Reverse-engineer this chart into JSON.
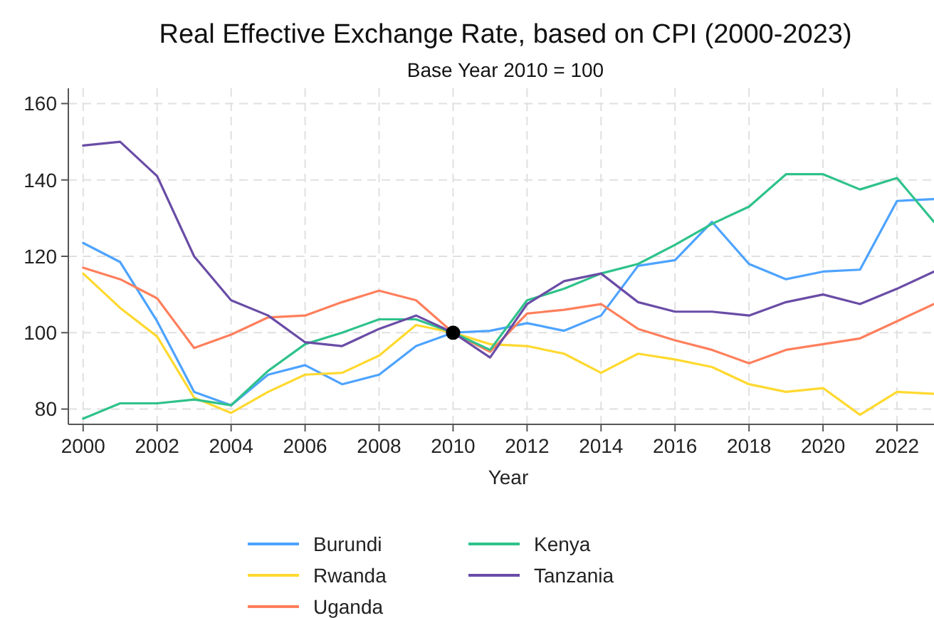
{
  "chart_data": {
    "type": "line",
    "title": "Real Effective Exchange Rate, based on CPI (2000-2023)",
    "subtitle": "Base Year 2010 = 100",
    "xlabel": "Year",
    "x": [
      2000,
      2001,
      2002,
      2003,
      2004,
      2005,
      2006,
      2007,
      2008,
      2009,
      2010,
      2011,
      2012,
      2013,
      2014,
      2015,
      2016,
      2017,
      2018,
      2019,
      2020,
      2021,
      2022,
      2023
    ],
    "xlim": [
      1999.6,
      2023
    ],
    "xticks": [
      2000,
      2002,
      2004,
      2006,
      2008,
      2010,
      2012,
      2014,
      2016,
      2018,
      2020,
      2022
    ],
    "ylim": [
      76,
      164
    ],
    "yticks": [
      80,
      100,
      120,
      140,
      160
    ],
    "grid": true,
    "legend": "bottom",
    "marker": "none",
    "line_style": "solid",
    "series": [
      {
        "name": "Burundi",
        "color": "#4da3ff",
        "values": [
          123.5,
          118.5,
          103,
          84.5,
          81,
          89,
          91.5,
          86.5,
          89,
          96.5,
          100,
          100.5,
          102.5,
          100.5,
          104.5,
          117.5,
          119,
          129,
          118,
          114,
          116,
          116.5,
          134.5,
          135
        ]
      },
      {
        "name": "Rwanda",
        "color": "#ffd92f",
        "values": [
          115.5,
          106.5,
          99,
          83,
          79,
          84.5,
          89,
          89.5,
          94,
          102,
          100,
          97,
          96.5,
          94.5,
          89.5,
          94.5,
          93,
          91,
          86.5,
          84.5,
          85.5,
          78.5,
          84.5,
          84
        ]
      },
      {
        "name": "Uganda",
        "color": "#ff7f5c",
        "values": [
          117,
          114,
          109,
          96,
          99.5,
          104,
          104.5,
          108,
          111,
          108.5,
          100,
          95,
          105,
          106,
          107.5,
          101,
          98,
          95.5,
          92,
          95.5,
          97,
          98.5,
          103,
          107.5
        ]
      },
      {
        "name": "Kenya",
        "color": "#2ec28a",
        "values": [
          77.5,
          81.5,
          81.5,
          82.5,
          81,
          90,
          97,
          100,
          103.5,
          103.5,
          100,
          95.5,
          108.5,
          111.5,
          115.5,
          118,
          123,
          128.5,
          133,
          141.5,
          141.5,
          137.5,
          140.5,
          129
        ]
      },
      {
        "name": "Tanzania",
        "color": "#6a4ca6",
        "values": [
          149,
          150,
          141,
          120,
          108.5,
          104.5,
          97.5,
          96.5,
          101,
          104.5,
          100,
          93.5,
          107.5,
          113.5,
          115.5,
          108,
          105.5,
          105.5,
          104.5,
          108,
          110,
          107.5,
          111.5,
          116
        ]
      },
      {
        "type": "scatter",
        "color": "#000000",
        "x": [
          2010
        ],
        "values": [
          100
        ],
        "marker": "circle"
      }
    ]
  }
}
